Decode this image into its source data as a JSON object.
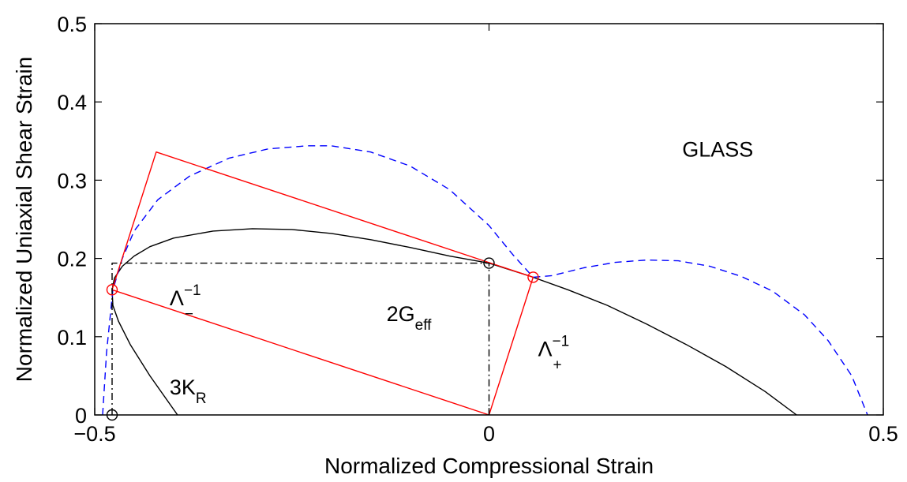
{
  "chart_data": {
    "type": "line",
    "xlabel": "Normalized Compressional Strain",
    "ylabel": "Normalized Uniaxial Shear Strain",
    "xlim": [
      -0.5,
      0.5
    ],
    "ylim": [
      0,
      0.5
    ],
    "x_ticks": [
      -0.5,
      0,
      0.5
    ],
    "x_tick_labels": [
      "−0.5",
      "0",
      "0.5"
    ],
    "y_ticks": [
      0,
      0.1,
      0.2,
      0.3,
      0.4,
      0.5
    ],
    "y_tick_labels": [
      "0",
      "0.1",
      "0.2",
      "0.3",
      "0.4",
      "0.5"
    ],
    "grid": false,
    "colors": {
      "black_curve": "#000000",
      "blue_curve": "#0000ff",
      "red_lines": "#ff0000"
    },
    "series": [
      {
        "style": "solid-black",
        "x": [
          -0.395,
          -0.43,
          -0.455,
          -0.47,
          -0.477,
          -0.478,
          -0.475,
          -0.465,
          -0.45,
          -0.43,
          -0.4,
          -0.35,
          -0.3,
          -0.25,
          -0.2,
          -0.15,
          -0.1,
          -0.05,
          0,
          0.05,
          0.1,
          0.15,
          0.2,
          0.25,
          0.3,
          0.35,
          0.39
        ],
        "y": [
          0,
          0.05,
          0.09,
          0.12,
          0.14,
          0.16,
          0.175,
          0.19,
          0.203,
          0.215,
          0.226,
          0.235,
          0.238,
          0.237,
          0.232,
          0.224,
          0.214,
          0.203,
          0.194,
          0.178,
          0.16,
          0.14,
          0.116,
          0.09,
          0.062,
          0.03,
          0
        ]
      },
      {
        "style": "dashed-blue",
        "x": [
          -0.49,
          -0.485,
          -0.477,
          -0.465,
          -0.45,
          -0.42,
          -0.38,
          -0.33,
          -0.28,
          -0.23,
          -0.2,
          -0.15,
          -0.1,
          -0.05,
          0,
          0.03,
          0.056,
          0.08,
          0.12,
          0.16,
          0.2,
          0.24,
          0.28,
          0.32,
          0.36,
          0.4,
          0.43,
          0.46,
          0.48
        ],
        "y": [
          0,
          0.08,
          0.16,
          0.2,
          0.235,
          0.275,
          0.305,
          0.328,
          0.34,
          0.344,
          0.344,
          0.336,
          0.318,
          0.288,
          0.242,
          0.205,
          0.176,
          0.178,
          0.188,
          0.195,
          0.198,
          0.197,
          0.19,
          0.177,
          0.158,
          0.128,
          0.095,
          0.05,
          0
        ]
      },
      {
        "style": "solid-red",
        "x": [
          0,
          -0.478,
          -0.422,
          0.056,
          0
        ],
        "y": [
          0,
          0.16,
          0.336,
          0.176,
          0
        ]
      },
      {
        "style": "dashdot-black",
        "x": [
          -0.478,
          -0.478,
          0,
          0
        ],
        "y": [
          0,
          0.194,
          0.194,
          0
        ]
      }
    ],
    "markers": [
      {
        "color": "black",
        "x": -0.478,
        "y": 0
      },
      {
        "color": "black",
        "x": 0,
        "y": 0.194
      },
      {
        "color": "red",
        "x": -0.478,
        "y": 0.16
      },
      {
        "color": "red",
        "x": 0.056,
        "y": 0.176
      }
    ],
    "annotations": [
      {
        "id": "glass",
        "text": "GLASS",
        "x": 0.245,
        "y": 0.33
      },
      {
        "id": "lambda-minus",
        "text": "Λ",
        "sup": "−1",
        "sub": "−",
        "x": -0.405,
        "y": 0.14
      },
      {
        "id": "two-g-eff",
        "text": "2G",
        "sub": "eff",
        "x": -0.13,
        "y": 0.12
      },
      {
        "id": "lambda-plus",
        "text": "Λ",
        "sup": "−1",
        "sub": "+",
        "x": 0.062,
        "y": 0.075
      },
      {
        "id": "three-k-r",
        "text": "3K",
        "sub": "R",
        "x": -0.405,
        "y": 0.026
      }
    ]
  }
}
